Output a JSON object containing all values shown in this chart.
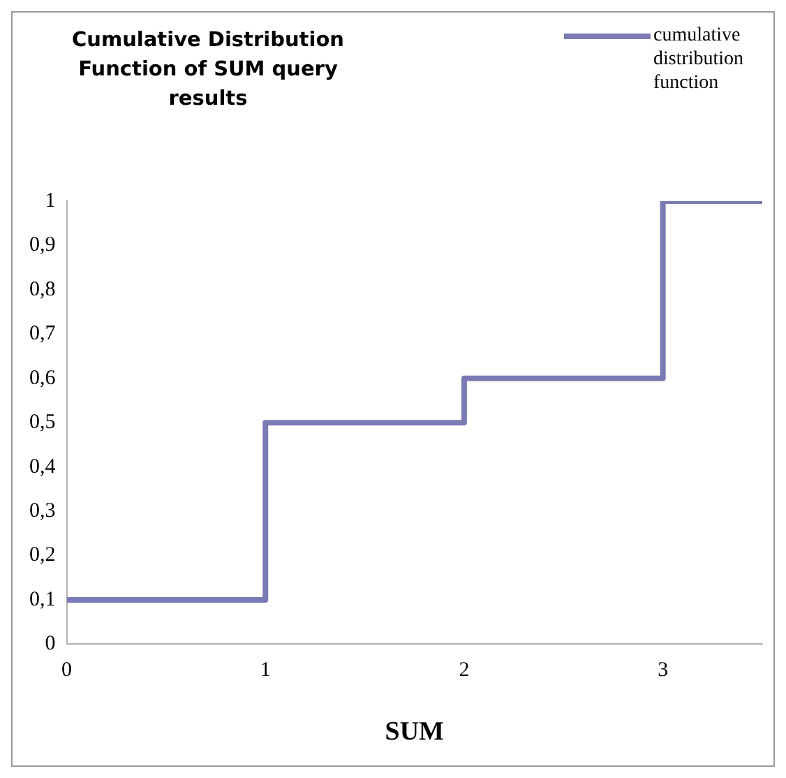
{
  "chart_data": {
    "type": "step",
    "title": "Cumulative Distribution Function of SUM query results",
    "xlabel": "SUM",
    "x": [
      0,
      1,
      2,
      3,
      3.5
    ],
    "series": [
      {
        "name": "cumulative distribution function",
        "color": "#7b7bb3",
        "values": [
          0.1,
          0.5,
          0.6,
          1,
          1
        ]
      }
    ],
    "xlim": [
      0,
      3.5
    ],
    "xticks": [
      0,
      1,
      2,
      3
    ],
    "ylim": [
      0,
      1
    ],
    "yticks": [
      0,
      {
        "value": 0.1,
        "label": "0,1"
      },
      {
        "value": 0.2,
        "label": "0,2"
      },
      {
        "value": 0.3,
        "label": "0,3"
      },
      {
        "value": 0.4,
        "label": "0,4"
      },
      {
        "value": 0.5,
        "label": "0,5"
      },
      {
        "value": 0.6,
        "label": "0,6"
      },
      {
        "value": 0.7,
        "label": "0,7"
      },
      {
        "value": 0.8,
        "label": "0,8"
      },
      {
        "value": 0.9,
        "label": "0,9"
      },
      1
    ],
    "grid": false,
    "legend": "top right",
    "marker": "none",
    "line_style": "solid"
  }
}
